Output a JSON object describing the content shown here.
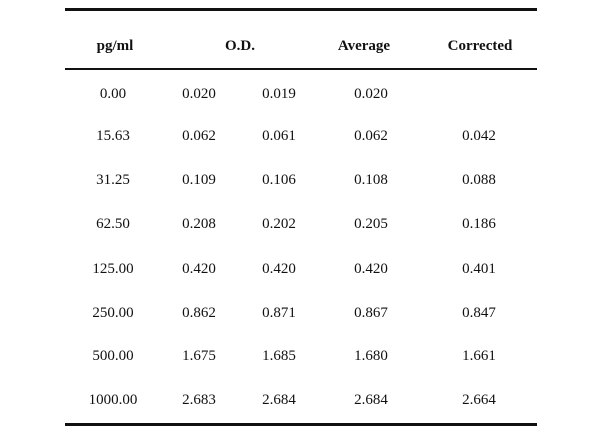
{
  "table": {
    "headers": {
      "concentration": "pg/ml",
      "od": "O.D.",
      "average": "Average",
      "corrected": "Corrected"
    },
    "rows": [
      {
        "conc": "0.00",
        "od1": "0.020",
        "od2": "0.019",
        "avg": "0.020",
        "corr": ""
      },
      {
        "conc": "15.63",
        "od1": "0.062",
        "od2": "0.061",
        "avg": "0.062",
        "corr": "0.042"
      },
      {
        "conc": "31.25",
        "od1": "0.109",
        "od2": "0.106",
        "avg": "0.108",
        "corr": "0.088"
      },
      {
        "conc": "62.50",
        "od1": "0.208",
        "od2": "0.202",
        "avg": "0.205",
        "corr": "0.186"
      },
      {
        "conc": "125.00",
        "od1": "0.420",
        "od2": "0.420",
        "avg": "0.420",
        "corr": "0.401"
      },
      {
        "conc": "250.00",
        "od1": "0.862",
        "od2": "0.871",
        "avg": "0.867",
        "corr": "0.847"
      },
      {
        "conc": "500.00",
        "od1": "1.675",
        "od2": "1.685",
        "avg": "1.680",
        "corr": "1.661"
      },
      {
        "conc": "1000.00",
        "od1": "2.683",
        "od2": "2.684",
        "avg": "2.684",
        "corr": "2.664"
      }
    ]
  }
}
